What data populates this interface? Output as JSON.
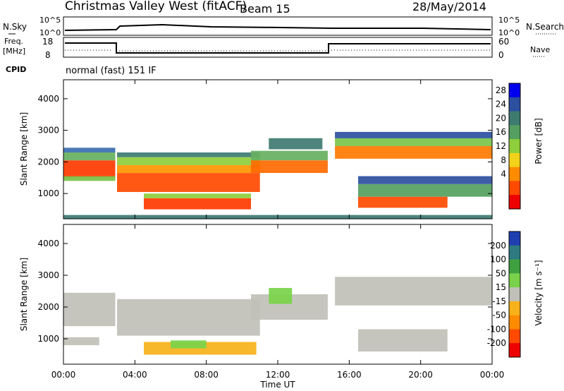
{
  "header": {
    "title": "Christmas Valley West (fitACF)",
    "beam": "Beam 15",
    "date": "28/May/2014"
  },
  "top_panels": {
    "nsky_label": "N.Sky",
    "nsearch_label": "N.Search",
    "log_ticks_left": [
      "10^5",
      "10^0"
    ],
    "log_ticks_right": [
      "10^5",
      "10^0"
    ],
    "freq_label": "Freq.",
    "freq_unit": "[MHz]",
    "freq_ticks": [
      "18",
      "8"
    ],
    "nave_label": "Nave",
    "nave_ticks": [
      "60",
      "0"
    ],
    "cpid_label": "CPID",
    "cpid_text": "normal (fast) 151 IF"
  },
  "chart_data": [
    {
      "type": "heatmap",
      "name": "power-panel",
      "ylabel": "Slant Range [km]",
      "yticks": [
        1000,
        2000,
        3000,
        4000
      ],
      "ylim": [
        200,
        4600
      ],
      "xlim": [
        0,
        24
      ],
      "xtick_labels": [
        "00:00",
        "04:00",
        "08:00",
        "12:00",
        "16:00",
        "20:00",
        "00:00"
      ],
      "colorbar_label": "Power [dB]",
      "colorbar_ticks": [
        "28",
        "24",
        "20",
        "16",
        "12",
        "8",
        "4"
      ],
      "colorbar_colors": [
        "#0000ee",
        "#2c4fa0",
        "#3e7a70",
        "#55a060",
        "#8fce3c",
        "#f2d21a",
        "#ff8c00",
        "#ff4a00",
        "#ee0000"
      ],
      "bands": [
        {
          "t": [
            0,
            2.9
          ],
          "r": [
            1500,
            2050
          ],
          "c": "#ff3a00"
        },
        {
          "t": [
            0,
            2.9
          ],
          "r": [
            1400,
            1550
          ],
          "c": "#7ac44a"
        },
        {
          "t": [
            0,
            2.9
          ],
          "r": [
            2050,
            2300
          ],
          "c": "#66b060"
        },
        {
          "t": [
            0,
            2.9
          ],
          "r": [
            2300,
            2450
          ],
          "c": "#3b6fb0"
        },
        {
          "t": [
            3.0,
            11.0
          ],
          "r": [
            1050,
            1650
          ],
          "c": "#ff4a00"
        },
        {
          "t": [
            3.0,
            11.0
          ],
          "r": [
            1650,
            1900
          ],
          "c": "#ff9500"
        },
        {
          "t": [
            3.0,
            11.0
          ],
          "r": [
            1900,
            2150
          ],
          "c": "#8fce3c"
        },
        {
          "t": [
            3.0,
            11.0
          ],
          "r": [
            2150,
            2300
          ],
          "c": "#3e7a70"
        },
        {
          "t": [
            4.5,
            10.5
          ],
          "r": [
            500,
            850
          ],
          "c": "#ff3a00"
        },
        {
          "t": [
            4.5,
            10.5
          ],
          "r": [
            850,
            1000
          ],
          "c": "#8fce3c"
        },
        {
          "t": [
            10.5,
            14.8
          ],
          "r": [
            1650,
            2050
          ],
          "c": "#ff6a00"
        },
        {
          "t": [
            10.5,
            14.8
          ],
          "r": [
            2050,
            2350
          ],
          "c": "#66b060"
        },
        {
          "t": [
            11.5,
            14.5
          ],
          "r": [
            2400,
            2750
          ],
          "c": "#3e7a70"
        },
        {
          "t": [
            15.2,
            24
          ],
          "r": [
            2100,
            2500
          ],
          "c": "#ff7a00"
        },
        {
          "t": [
            15.2,
            24
          ],
          "r": [
            2500,
            2750
          ],
          "c": "#7ac44a"
        },
        {
          "t": [
            15.2,
            24
          ],
          "r": [
            2750,
            2950
          ],
          "c": "#2c4fa0"
        },
        {
          "t": [
            16.5,
            21.5
          ],
          "r": [
            550,
            900
          ],
          "c": "#ff4a00"
        },
        {
          "t": [
            16.5,
            24
          ],
          "r": [
            900,
            1300
          ],
          "c": "#55a060"
        },
        {
          "t": [
            16.5,
            24
          ],
          "r": [
            1300,
            1550
          ],
          "c": "#2c4fa0"
        },
        {
          "t": [
            0,
            24
          ],
          "r": [
            200,
            320
          ],
          "c": "#3e7a70"
        }
      ]
    },
    {
      "type": "heatmap",
      "name": "velocity-panel",
      "ylabel": "Slant Range [km]",
      "yticks": [
        1000,
        2000,
        3000,
        4000
      ],
      "ylim": [
        200,
        4600
      ],
      "xlim": [
        0,
        24
      ],
      "xlabel": "Time UT",
      "xtick_labels": [
        "00:00",
        "04:00",
        "08:00",
        "12:00",
        "16:00",
        "20:00",
        "00:00"
      ],
      "colorbar_label": "Velocity [m s⁻¹]",
      "colorbar_ticks": [
        "200",
        "100",
        "50",
        "15",
        "-15",
        "-50",
        "-100",
        "-200"
      ],
      "colorbar_colors": [
        "#1f3fb0",
        "#2e7a80",
        "#3fa040",
        "#7ad24a",
        "#c0c0b8",
        "#f7b21a",
        "#ff8c00",
        "#ff4a00",
        "#ee0000"
      ],
      "bands": [
        {
          "t": [
            0,
            2.9
          ],
          "r": [
            1400,
            2450
          ],
          "c": "#c0c0b8"
        },
        {
          "t": [
            0,
            2.0
          ],
          "r": [
            800,
            1050
          ],
          "c": "#c0c0b8"
        },
        {
          "t": [
            3.0,
            11.0
          ],
          "r": [
            1100,
            2250
          ],
          "c": "#c0c0b8"
        },
        {
          "t": [
            4.5,
            10.8
          ],
          "r": [
            500,
            900
          ],
          "c": "#f7b21a"
        },
        {
          "t": [
            6.0,
            8.0
          ],
          "r": [
            700,
            950
          ],
          "c": "#7ad24a"
        },
        {
          "t": [
            10.5,
            14.8
          ],
          "r": [
            1600,
            2400
          ],
          "c": "#c0c0b8"
        },
        {
          "t": [
            11.5,
            12.8
          ],
          "r": [
            2100,
            2600
          ],
          "c": "#7ad24a"
        },
        {
          "t": [
            15.2,
            24
          ],
          "r": [
            2050,
            2950
          ],
          "c": "#c0c0b8"
        },
        {
          "t": [
            16.5,
            21.5
          ],
          "r": [
            600,
            1300
          ],
          "c": "#c0c0b8"
        }
      ]
    }
  ]
}
